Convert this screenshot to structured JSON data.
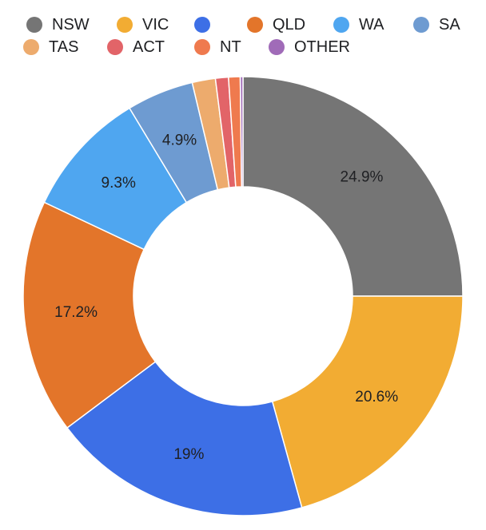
{
  "chart_data": {
    "type": "pie",
    "donut": true,
    "legend_position": "top",
    "categories": [
      "NSW",
      "VIC",
      "",
      "QLD",
      "WA",
      "SA",
      "TAS",
      "ACT",
      "NT",
      "OTHER"
    ],
    "values": [
      24.9,
      20.6,
      19,
      17.2,
      9.3,
      4.9,
      1.7,
      0.95,
      0.85,
      0.2
    ],
    "data_labels": [
      "24.9%",
      "20.6%",
      "19%",
      "17.2%",
      "9.3%",
      "4.9%",
      "",
      "",
      "",
      ""
    ],
    "colors": [
      "#757575",
      "#F2AC33",
      "#3D6FE6",
      "#E3752A",
      "#4FA6F0",
      "#6E9BD1",
      "#EDAB6D",
      "#E26468",
      "#EF7A4E",
      "#A06BB8"
    ],
    "legend": [
      {
        "label": "NSW",
        "color": "#757575"
      },
      {
        "label": "VIC",
        "color": "#F2AC33"
      },
      {
        "label": "",
        "color": "#3D6FE6"
      },
      {
        "label": "QLD",
        "color": "#E3752A"
      },
      {
        "label": "WA",
        "color": "#4FA6F0"
      },
      {
        "label": "SA",
        "color": "#6E9BD1"
      },
      {
        "label": "TAS",
        "color": "#EDAB6D"
      },
      {
        "label": "ACT",
        "color": "#E26468"
      },
      {
        "label": "NT",
        "color": "#EF7A4E"
      },
      {
        "label": "OTHER",
        "color": "#A06BB8"
      }
    ]
  }
}
